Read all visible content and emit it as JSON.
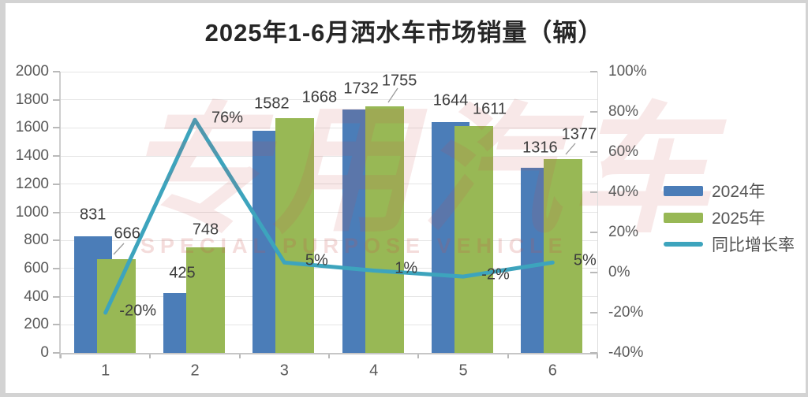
{
  "title": "2025年1-6月洒水车市场销量（辆）",
  "watermark": {
    "cn": "专用汽车",
    "en": "SPECIAL PURPOSE VEHICLE"
  },
  "colors": {
    "bar_2024": "#4b7db8",
    "bar_2025": "#98b855",
    "growth_line": "#3da4bd",
    "grid": "#e5e5e5",
    "axis_text": "#595959",
    "data_label_text": "#3d3d3d"
  },
  "legend": {
    "position": "right",
    "items": [
      {
        "label": "2024年",
        "swatch": "box",
        "color": "#4b7db8"
      },
      {
        "label": "2025年",
        "swatch": "box",
        "color": "#98b855"
      },
      {
        "label": "同比增长率",
        "swatch": "line",
        "color": "#3da4bd"
      }
    ]
  },
  "chart_data": {
    "type": "bar+line",
    "title": "2025年1-6月洒水车市场销量（辆）",
    "categories": [
      "1",
      "2",
      "3",
      "4",
      "5",
      "6"
    ],
    "series": [
      {
        "name": "2024年",
        "type": "bar",
        "axis": "left",
        "values": [
          831,
          425,
          1582,
          1732,
          1644,
          1316
        ],
        "data_labels": [
          "831",
          "425",
          "1582",
          "1732",
          "1644",
          "1316"
        ]
      },
      {
        "name": "2025年",
        "type": "bar",
        "axis": "left",
        "values": [
          666,
          748,
          1668,
          1755,
          1611,
          1377
        ],
        "data_labels": [
          "666",
          "748",
          "1668",
          "1755",
          "1611",
          "1377"
        ]
      },
      {
        "name": "同比增长率",
        "type": "line",
        "axis": "right",
        "values_percent": [
          -20,
          76,
          5,
          1,
          -2,
          5
        ],
        "data_labels": [
          "-20%",
          "76%",
          "5%",
          "1%",
          "-2%",
          "5%"
        ]
      }
    ],
    "left_axis": {
      "min": 0,
      "max": 2000,
      "step": 200,
      "tick_labels": [
        "0",
        "200",
        "400",
        "600",
        "800",
        "1000",
        "1200",
        "1400",
        "1600",
        "1800",
        "2000"
      ]
    },
    "right_axis": {
      "min": -40,
      "max": 100,
      "step": 20,
      "tick_labels": [
        "-40%",
        "-20%",
        "0%",
        "20%",
        "40%",
        "60%",
        "80%",
        "100%"
      ]
    },
    "grid": true,
    "legend_position": "right"
  }
}
